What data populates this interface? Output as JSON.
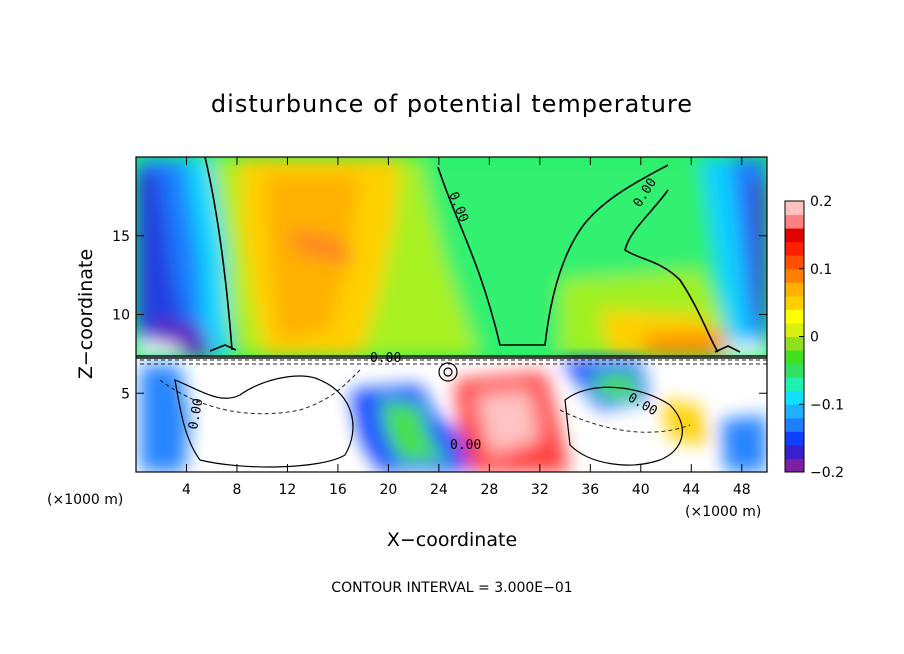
{
  "chart_data": {
    "type": "heatmap",
    "title": "disturbunce of potential temperature",
    "xlabel": "X−coordinate",
    "ylabel": "Z−coordinate",
    "x_unit": "(×1000 m)",
    "x_unit_right": "(×1000 m)",
    "xlim": [
      0,
      50
    ],
    "ylim": [
      0,
      20
    ],
    "x_ticks": [
      4,
      8,
      12,
      16,
      20,
      24,
      28,
      32,
      36,
      40,
      44,
      48
    ],
    "y_ticks": [
      5,
      10,
      15
    ],
    "colorbar": {
      "range": [
        -0.2,
        0.2
      ],
      "ticks": [
        {
          "value": 0.2,
          "label": "0.2"
        },
        {
          "value": 0.1,
          "label": "0.1"
        },
        {
          "value": 0.0,
          "label": "0"
        },
        {
          "value": -0.1,
          "label": "−0.1"
        },
        {
          "value": -0.2,
          "label": "−0.2"
        }
      ],
      "colors": [
        "#7f1fa0",
        "#3a1fd0",
        "#1040ff",
        "#1f7fff",
        "#20b0ff",
        "#10e0ff",
        "#20f0b0",
        "#30e060",
        "#40e020",
        "#90e020",
        "#d8f010",
        "#ffff00",
        "#ffd000",
        "#ffb000",
        "#ff8000",
        "#ff5000",
        "#ff2000",
        "#e00000",
        "#ff8080",
        "#ffc0c0"
      ]
    },
    "contour_labels": [
      "0.00",
      "0.00",
      "0.00",
      "0.00",
      "0.00",
      "0.00"
    ],
    "contour_interval_text": "CONTOUR INTERVAL = 3.000E−01"
  }
}
